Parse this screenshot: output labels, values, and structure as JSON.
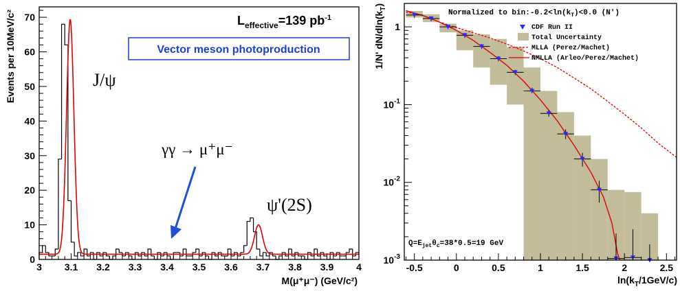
{
  "chart_data": [
    {
      "type": "histogram",
      "xlabel": "M(μ⁺μ⁻) (GeV/c²)",
      "ylabel": "Events per 10MeV/c²",
      "xlim": [
        3.0,
        4.0
      ],
      "ylim": [
        0,
        73
      ],
      "x_ticks": [
        "3",
        "3.1",
        "3.2",
        "3.3",
        "3.4",
        "3.5",
        "3.6",
        "3.7",
        "3.8",
        "3.9",
        "4"
      ],
      "y_ticks": [
        "0",
        "10",
        "20",
        "30",
        "40",
        "50",
        "60",
        "70"
      ],
      "header_label": "L",
      "header_sub": "effective",
      "header_value": "=139 pb",
      "header_sup": "-1",
      "boxed_title": "Vector meson photoproduction",
      "annotations": {
        "jpsi": "J/ψ",
        "psi2s": "ψ'(2S)",
        "gammagamma": "γγ → μ⁺μ⁻"
      },
      "bin_width": 0.01,
      "hist_bin_lefts": [
        3.0,
        3.01,
        3.02,
        3.03,
        3.04,
        3.05,
        3.06,
        3.07,
        3.08,
        3.09,
        3.1,
        3.11,
        3.12,
        3.13,
        3.14,
        3.15,
        3.16,
        3.17,
        3.18,
        3.19,
        3.2,
        3.21,
        3.22,
        3.23,
        3.24,
        3.25,
        3.26,
        3.27,
        3.28,
        3.29,
        3.3,
        3.31,
        3.32,
        3.33,
        3.34,
        3.35,
        3.36,
        3.37,
        3.38,
        3.39,
        3.4,
        3.41,
        3.42,
        3.43,
        3.44,
        3.45,
        3.46,
        3.47,
        3.48,
        3.49,
        3.5,
        3.51,
        3.52,
        3.53,
        3.54,
        3.55,
        3.56,
        3.57,
        3.58,
        3.59,
        3.6,
        3.61,
        3.62,
        3.63,
        3.64,
        3.65,
        3.66,
        3.67,
        3.68,
        3.69,
        3.7,
        3.71,
        3.72,
        3.73,
        3.74,
        3.75,
        3.76,
        3.77,
        3.78,
        3.79,
        3.8,
        3.81,
        3.82,
        3.83,
        3.84,
        3.85,
        3.86,
        3.87,
        3.88,
        3.89,
        3.9,
        3.91,
        3.92,
        3.93,
        3.94,
        3.95,
        3.96,
        3.97,
        3.98,
        3.99
      ],
      "hist_counts": [
        2,
        4,
        2,
        1,
        1,
        3,
        29,
        68,
        62,
        17,
        5,
        1,
        2,
        1,
        3,
        1,
        2,
        0,
        2,
        1,
        2,
        1,
        0,
        1,
        3,
        2,
        1,
        2,
        1,
        0,
        2,
        1,
        2,
        1,
        3,
        1,
        0,
        2,
        1,
        2,
        1,
        0,
        2,
        2,
        1,
        3,
        1,
        1,
        2,
        3,
        1,
        2,
        1,
        0,
        2,
        1,
        2,
        1,
        1,
        3,
        1,
        2,
        1,
        2,
        4,
        11,
        12,
        8,
        3,
        1,
        2,
        1,
        2,
        1,
        0,
        1,
        2,
        1,
        3,
        1,
        2,
        1,
        1,
        0,
        2,
        1,
        3,
        1,
        2,
        1,
        0,
        2,
        1,
        2,
        1,
        1,
        2,
        3,
        1,
        2
      ],
      "fit_curve": {
        "background": 1.5,
        "peaks": [
          {
            "mean": 3.097,
            "sigma": 0.0115,
            "amplitude": 68
          },
          {
            "mean": 3.686,
            "sigma": 0.0125,
            "amplitude": 8.5
          }
        ]
      },
      "colors": {
        "histogram": "#000000",
        "fit": "#e00000",
        "arrow": "#1f4fd8",
        "boxed_title": "#1f3fd0"
      }
    },
    {
      "type": "scatter",
      "xlabel": "ln(k_T/1GeV/c)",
      "ylabel": "1/N' dN/dln(k_T)",
      "xlim": [
        -0.62,
        2.62
      ],
      "ylim": [
        0.001,
        2.0
      ],
      "y_scale": "log",
      "x_ticks": [
        "-0.5",
        "0",
        "0.5",
        "1",
        "1.5",
        "2",
        "2.5"
      ],
      "y_ticks": [
        {
          "value": 0.001,
          "base": "10",
          "exp": "-3"
        },
        {
          "value": 0.01,
          "base": "10",
          "exp": "-2"
        },
        {
          "value": 0.1,
          "base": "10",
          "exp": "-1"
        },
        {
          "value": 1,
          "base": "1",
          "exp": ""
        }
      ],
      "norm_text": "Normalized to bin:-0.2<ln(k",
      "norm_sub": "T",
      "norm_tail": ")<0.0 (N')",
      "q_text": "Q=E",
      "q_sub": "jet",
      "q_mid": "θ",
      "q_sub2": "c",
      "q_tail": "=38*0.5=19 GeV",
      "legend": {
        "position": "top-right",
        "entries": [
          "CDF Run II",
          "Total Uncertainty",
          "MLLA (Perez/Machet)",
          "NMLLA (Arleo/Perez/Machet)"
        ]
      },
      "data_points": [
        {
          "x": -0.5,
          "y": 1.42,
          "ylo": 1.3,
          "yhi": 1.5
        },
        {
          "x": -0.3,
          "y": 1.28,
          "ylo": 1.18,
          "yhi": 1.36
        },
        {
          "x": -0.1,
          "y": 1.0,
          "ylo": 0.94,
          "yhi": 1.06
        },
        {
          "x": 0.1,
          "y": 0.78,
          "ylo": 0.72,
          "yhi": 0.83
        },
        {
          "x": 0.3,
          "y": 0.56,
          "ylo": 0.52,
          "yhi": 0.6
        },
        {
          "x": 0.5,
          "y": 0.39,
          "ylo": 0.36,
          "yhi": 0.42
        },
        {
          "x": 0.7,
          "y": 0.26,
          "ylo": 0.24,
          "yhi": 0.28
        },
        {
          "x": 0.9,
          "y": 0.15,
          "ylo": 0.14,
          "yhi": 0.165
        },
        {
          "x": 1.1,
          "y": 0.077,
          "ylo": 0.07,
          "yhi": 0.085
        },
        {
          "x": 1.3,
          "y": 0.042,
          "ylo": 0.036,
          "yhi": 0.048
        },
        {
          "x": 1.5,
          "y": 0.02,
          "ylo": 0.016,
          "yhi": 0.024
        },
        {
          "x": 1.7,
          "y": 0.008,
          "ylo": 0.0055,
          "yhi": 0.0105
        },
        {
          "x": 1.9,
          "y": 0.00105,
          "ylo": 0.001,
          "yhi": 0.0022
        },
        {
          "x": 2.1,
          "y": 0.00108,
          "ylo": 0.001,
          "yhi": 0.0025
        },
        {
          "x": 2.3,
          "y": 0.001,
          "ylo": 0.001,
          "yhi": 0.0016
        }
      ],
      "uncertainty_bands": [
        {
          "x0": -0.6,
          "x1": -0.4,
          "lo": 1.32,
          "hi": 1.6
        },
        {
          "x0": -0.4,
          "x1": -0.2,
          "lo": 1.15,
          "hi": 1.45
        },
        {
          "x0": -0.2,
          "x1": 0.0,
          "lo": 0.85,
          "hi": 1.1
        },
        {
          "x0": 0.0,
          "x1": 0.2,
          "lo": 0.5,
          "hi": 0.9
        },
        {
          "x0": 0.2,
          "x1": 0.4,
          "lo": 0.3,
          "hi": 0.8
        },
        {
          "x0": 0.4,
          "x1": 0.6,
          "lo": 0.18,
          "hi": 0.7
        },
        {
          "x0": 0.6,
          "x1": 0.8,
          "lo": 0.1,
          "hi": 0.55
        },
        {
          "x0": 0.8,
          "x1": 1.0,
          "lo": 0.001,
          "hi": 0.3
        },
        {
          "x0": 1.0,
          "x1": 1.2,
          "lo": 0.001,
          "hi": 0.15
        },
        {
          "x0": 1.2,
          "x1": 1.4,
          "lo": 0.001,
          "hi": 0.08
        },
        {
          "x0": 1.4,
          "x1": 1.6,
          "lo": 0.001,
          "hi": 0.04
        },
        {
          "x0": 1.6,
          "x1": 1.8,
          "lo": 0.001,
          "hi": 0.02
        },
        {
          "x0": 1.8,
          "x1": 2.0,
          "lo": 0.001,
          "hi": 0.008
        },
        {
          "x0": 2.0,
          "x1": 2.2,
          "lo": 0.001,
          "hi": 0.0075
        },
        {
          "x0": 2.2,
          "x1": 2.4,
          "lo": 0.001,
          "hi": 0.004
        }
      ],
      "mlla_curve": [
        [
          -0.6,
          1.55
        ],
        [
          -0.4,
          1.4
        ],
        [
          -0.2,
          1.15
        ],
        [
          0.0,
          0.98
        ],
        [
          0.2,
          0.84
        ],
        [
          0.4,
          0.72
        ],
        [
          0.6,
          0.6
        ],
        [
          0.8,
          0.49
        ],
        [
          1.0,
          0.39
        ],
        [
          1.2,
          0.3
        ],
        [
          1.4,
          0.22
        ],
        [
          1.6,
          0.16
        ],
        [
          1.8,
          0.11
        ],
        [
          2.0,
          0.075
        ],
        [
          2.2,
          0.05
        ],
        [
          2.4,
          0.032
        ],
        [
          2.62,
          0.021
        ]
      ],
      "nmlla_curve": [
        [
          -0.6,
          1.62
        ],
        [
          -0.4,
          1.4
        ],
        [
          -0.2,
          1.15
        ],
        [
          0.0,
          0.9
        ],
        [
          0.2,
          0.67
        ],
        [
          0.4,
          0.47
        ],
        [
          0.6,
          0.32
        ],
        [
          0.8,
          0.2
        ],
        [
          1.0,
          0.115
        ],
        [
          1.2,
          0.062
        ],
        [
          1.4,
          0.03
        ],
        [
          1.6,
          0.0135
        ],
        [
          1.75,
          0.0065
        ],
        [
          1.85,
          0.003
        ],
        [
          1.92,
          0.0012
        ],
        [
          1.945,
          0.001
        ]
      ],
      "colors": {
        "band": "#c2bd98",
        "points": "#2a2aff",
        "mlla": "#e00000",
        "nmlla": "#e00000"
      }
    }
  ]
}
